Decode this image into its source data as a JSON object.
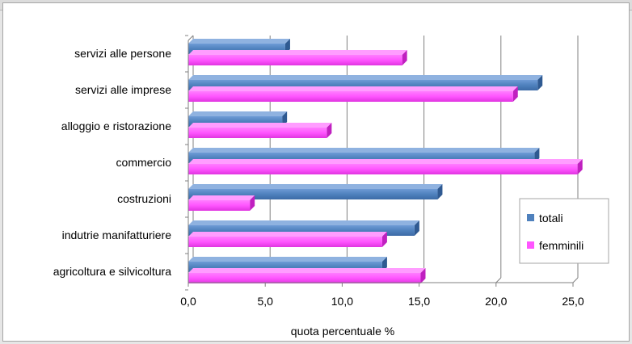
{
  "chart_data": {
    "type": "bar",
    "orientation": "horizontal",
    "style": "3d-clustered",
    "categories": [
      "servizi alle persone",
      "servizi alle imprese",
      "alloggio e ristorazione",
      "commercio",
      "costruzioni",
      "indutrie manifatturiere",
      "agricoltura e silvicoltura"
    ],
    "series": [
      {
        "name": "totali",
        "values": [
          6.3,
          22.7,
          6.1,
          22.5,
          16.2,
          14.7,
          12.6
        ]
      },
      {
        "name": "femminili",
        "values": [
          13.9,
          21.1,
          9.0,
          25.3,
          4.0,
          12.6,
          15.1
        ]
      }
    ],
    "xlim": [
      0,
      25
    ],
    "x_ticks": [
      "0,0",
      "5,0",
      "10,0",
      "15,0",
      "20,0",
      "25,0"
    ],
    "xlabel": "quota percentuale %",
    "ylabel": "",
    "grid": "vertical",
    "legend_position": "right",
    "colors": {
      "totali": "#4f81bd",
      "femminili": "#ff55ff"
    }
  }
}
